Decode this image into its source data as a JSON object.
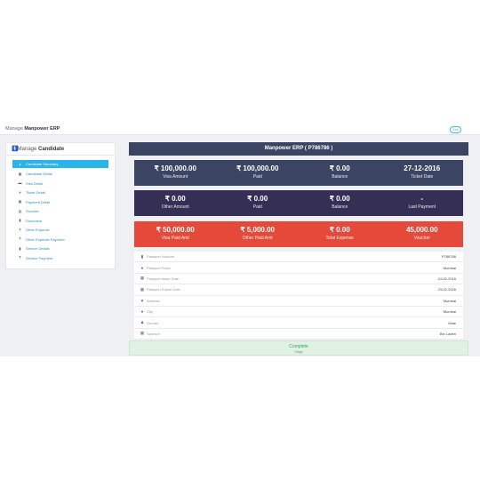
{
  "header": {
    "title_prefix": "Manage",
    "title_app": "Manpower ERP",
    "exit_label": "Exit"
  },
  "sidebar": {
    "title_prefix": "Manage",
    "title_bold": "Candidate",
    "items": [
      {
        "label": "Candidate Summary",
        "icon": "summary-icon",
        "active": true
      },
      {
        "label": "Candidate Detail",
        "icon": "table-icon"
      },
      {
        "label": "Visa Detail",
        "icon": "card-icon"
      },
      {
        "label": "Ticket Detail",
        "icon": "plane-icon"
      },
      {
        "label": "Payment Detail",
        "icon": "calendar-icon"
      },
      {
        "label": "Voucher",
        "icon": "voucher-icon"
      },
      {
        "label": "Document",
        "icon": "book-icon"
      },
      {
        "label": "Other Expense",
        "icon": "rupee-icon"
      },
      {
        "label": "Other Expense Payment",
        "icon": "rupee-icon"
      },
      {
        "label": "Service Details",
        "icon": "book-icon"
      },
      {
        "label": "Service Payment",
        "icon": "rupee-icon"
      }
    ]
  },
  "main": {
    "banner": "Manpower ERP ( P786786 )",
    "stats_row1": [
      {
        "value": "₹ 100,000.00",
        "label": "Visa Amount"
      },
      {
        "value": "₹ 100,000.00",
        "label": "Paid"
      },
      {
        "value": "₹ 0.00",
        "label": "Balance"
      },
      {
        "value": "27-12-2016",
        "label": "Ticket Date"
      }
    ],
    "stats_row2": [
      {
        "value": "₹ 0.00",
        "label": "Other Amount"
      },
      {
        "value": "₹ 0.00",
        "label": "Paid"
      },
      {
        "value": "₹ 0.00",
        "label": "Balance"
      },
      {
        "value": "-",
        "label": "Last Payment"
      }
    ],
    "stats_row3": [
      {
        "value": "₹ 50,000.00",
        "label": "Visa Paid Amt"
      },
      {
        "value": "₹ 5,000.00",
        "label": "Other Paid Amt"
      },
      {
        "value": "₹ 0.00",
        "label": "Total Expense"
      },
      {
        "value": "45,000.00",
        "label": "Voucher"
      }
    ],
    "details": [
      {
        "key": "Passport Number",
        "value": "P786786",
        "icon": "passport-icon"
      },
      {
        "key": "Passport Place",
        "value": "Mumbai",
        "icon": "globe-icon"
      },
      {
        "key": "Passport Issue Date",
        "value": "24-02-2016",
        "icon": "calendar-icon"
      },
      {
        "key": "Passport Expire Date",
        "value": "23-02-2026",
        "icon": "calendar-icon"
      },
      {
        "key": "Address",
        "value": "Mumbai",
        "icon": "map-marker-icon"
      },
      {
        "key": "City",
        "value": "Mumbai",
        "icon": "globe-icon"
      },
      {
        "key": "Gender",
        "value": "Male",
        "icon": "person-icon"
      },
      {
        "key": "Sponsor",
        "value": "Bin Laden",
        "icon": "building-icon"
      }
    ],
    "status": {
      "label": "Complete",
      "sub": "Stage"
    }
  },
  "colors": {
    "banner": "#3b4463",
    "row2": "#352e55",
    "row3": "#e5493a",
    "accent": "#29b5e8",
    "complete": "#dff2e3"
  }
}
